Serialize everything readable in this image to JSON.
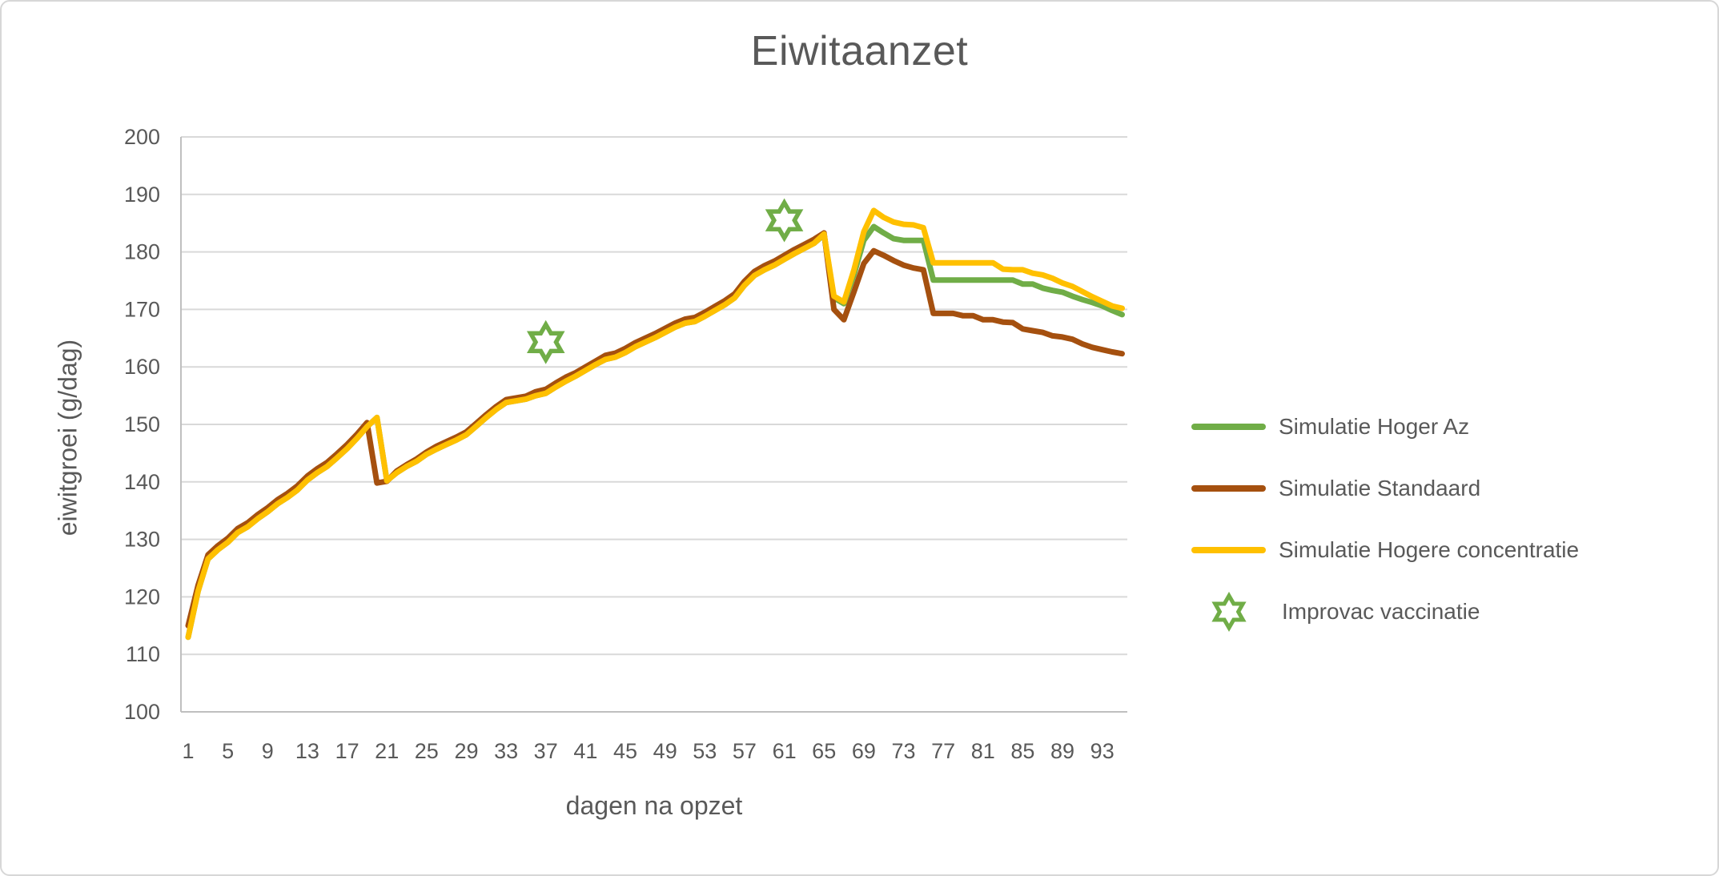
{
  "title": "Eiwitaanzet",
  "colors": {
    "text": "#595959",
    "gridline": "#d9d9d9",
    "axis_line": "#bfbfbf",
    "green": "#70AD47",
    "brown": "#A5500F",
    "yellow": "#FFC000"
  },
  "axes": {
    "y_ticks": [
      100,
      110,
      120,
      130,
      140,
      150,
      160,
      170,
      180,
      190,
      200
    ],
    "x_ticks": [
      1,
      5,
      9,
      13,
      17,
      21,
      25,
      29,
      33,
      37,
      41,
      45,
      49,
      53,
      57,
      61,
      65,
      69,
      73,
      77,
      81,
      85,
      89,
      93
    ]
  },
  "chart_data": {
    "type": "line",
    "title": "Eiwitaanzet",
    "xlabel": "dagen na opzet",
    "ylabel": "eiwitgroei (g/dag)",
    "xlim": [
      1,
      95
    ],
    "ylim": [
      100,
      200
    ],
    "grid": "horizontal",
    "legend_position": "right",
    "x": [
      1,
      2,
      3,
      4,
      5,
      6,
      7,
      8,
      9,
      10,
      11,
      12,
      13,
      14,
      15,
      16,
      17,
      18,
      19,
      20,
      21,
      22,
      23,
      24,
      25,
      26,
      27,
      28,
      29,
      30,
      31,
      32,
      33,
      34,
      35,
      36,
      37,
      38,
      39,
      40,
      41,
      42,
      43,
      44,
      45,
      46,
      47,
      48,
      49,
      50,
      51,
      52,
      53,
      54,
      55,
      56,
      57,
      58,
      59,
      60,
      61,
      62,
      63,
      64,
      65,
      66,
      67,
      68,
      69,
      70,
      71,
      72,
      73,
      74,
      75,
      76,
      77,
      78,
      79,
      80,
      81,
      82,
      83,
      84,
      85,
      86,
      87,
      88,
      89,
      90,
      91,
      92,
      93,
      94,
      95
    ],
    "series": [
      {
        "name": "Simulatie Hoger Az",
        "color": "#70AD47",
        "values": [
          113.0,
          121.0,
          126.6,
          128.2,
          129.5,
          131.2,
          132.2,
          133.6,
          134.8,
          136.2,
          137.3,
          138.6,
          140.3,
          141.6,
          142.7,
          144.2,
          145.8,
          147.6,
          149.6,
          151.2,
          140.2,
          141.6,
          142.7,
          143.6,
          144.8,
          145.7,
          146.5,
          147.3,
          148.2,
          149.7,
          151.2,
          152.6,
          153.8,
          154.1,
          154.4,
          155.0,
          155.4,
          156.5,
          157.5,
          158.4,
          159.4,
          160.4,
          161.3,
          161.7,
          162.5,
          163.5,
          164.3,
          165.1,
          166.0,
          166.9,
          167.6,
          167.9,
          168.8,
          169.8,
          170.8,
          172.0,
          174.2,
          175.9,
          176.9,
          177.7,
          178.7,
          179.7,
          180.6,
          181.5,
          183.0,
          172.0,
          171.0,
          176.0,
          182.0,
          184.4,
          183.3,
          182.3,
          182.0,
          182.0,
          182.0,
          175.1,
          175.1,
          175.1,
          175.1,
          175.1,
          175.1,
          175.1,
          175.1,
          175.1,
          174.4,
          174.4,
          173.7,
          173.3,
          173.0,
          172.3,
          171.7,
          171.2,
          170.6,
          169.8,
          169.1
        ]
      },
      {
        "name": "Simulatie Standaard",
        "color": "#A5500F",
        "values": [
          115.0,
          122.0,
          127.3,
          128.9,
          130.2,
          131.9,
          132.9,
          134.3,
          135.5,
          136.9,
          138.0,
          139.3,
          141.0,
          142.3,
          143.4,
          144.9,
          146.5,
          148.3,
          150.3,
          139.8,
          140.1,
          141.9,
          143.0,
          144.0,
          145.2,
          146.2,
          147.0,
          147.8,
          148.7,
          150.2,
          151.7,
          153.1,
          154.3,
          154.6,
          154.9,
          155.7,
          156.1,
          157.2,
          158.2,
          159.0,
          160.0,
          161.0,
          162.0,
          162.4,
          163.2,
          164.2,
          165.0,
          165.8,
          166.7,
          167.6,
          168.3,
          168.6,
          169.5,
          170.5,
          171.5,
          172.7,
          174.9,
          176.6,
          177.6,
          178.4,
          179.4,
          180.4,
          181.3,
          182.2,
          183.3,
          170.0,
          168.2,
          173.0,
          178.0,
          180.2,
          179.4,
          178.5,
          177.7,
          177.2,
          176.9,
          169.3,
          169.3,
          169.3,
          168.9,
          168.9,
          168.2,
          168.2,
          167.8,
          167.7,
          166.6,
          166.3,
          166.0,
          165.4,
          165.2,
          164.8,
          164.0,
          163.4,
          163.0,
          162.6,
          162.3
        ]
      },
      {
        "name": "Simulatie Hogere concentratie",
        "color": "#FFC000",
        "values": [
          113.0,
          121.0,
          126.6,
          128.2,
          129.5,
          131.2,
          132.2,
          133.6,
          134.8,
          136.2,
          137.3,
          138.6,
          140.3,
          141.6,
          142.7,
          144.2,
          145.8,
          147.6,
          149.6,
          151.2,
          140.2,
          141.6,
          142.7,
          143.6,
          144.8,
          145.7,
          146.5,
          147.3,
          148.2,
          149.7,
          151.2,
          152.6,
          153.8,
          154.1,
          154.4,
          155.0,
          155.4,
          156.5,
          157.5,
          158.4,
          159.4,
          160.4,
          161.3,
          161.7,
          162.5,
          163.5,
          164.3,
          165.1,
          166.0,
          166.9,
          167.6,
          167.9,
          168.8,
          169.8,
          170.8,
          172.0,
          174.2,
          175.9,
          176.9,
          177.7,
          178.7,
          179.7,
          180.6,
          181.5,
          183.1,
          172.3,
          171.3,
          176.8,
          183.5,
          187.2,
          186.0,
          185.2,
          184.8,
          184.7,
          184.2,
          178.1,
          178.1,
          178.1,
          178.1,
          178.1,
          178.1,
          178.1,
          177.0,
          176.9,
          176.9,
          176.3,
          176.0,
          175.4,
          174.6,
          174.0,
          173.1,
          172.2,
          171.4,
          170.6,
          170.2
        ]
      }
    ],
    "markers": {
      "name": "Improvac vaccinatie",
      "color": "#70AD47",
      "points": [
        {
          "x": 37,
          "y": 164.3
        },
        {
          "x": 61,
          "y": 185.5
        }
      ]
    }
  }
}
